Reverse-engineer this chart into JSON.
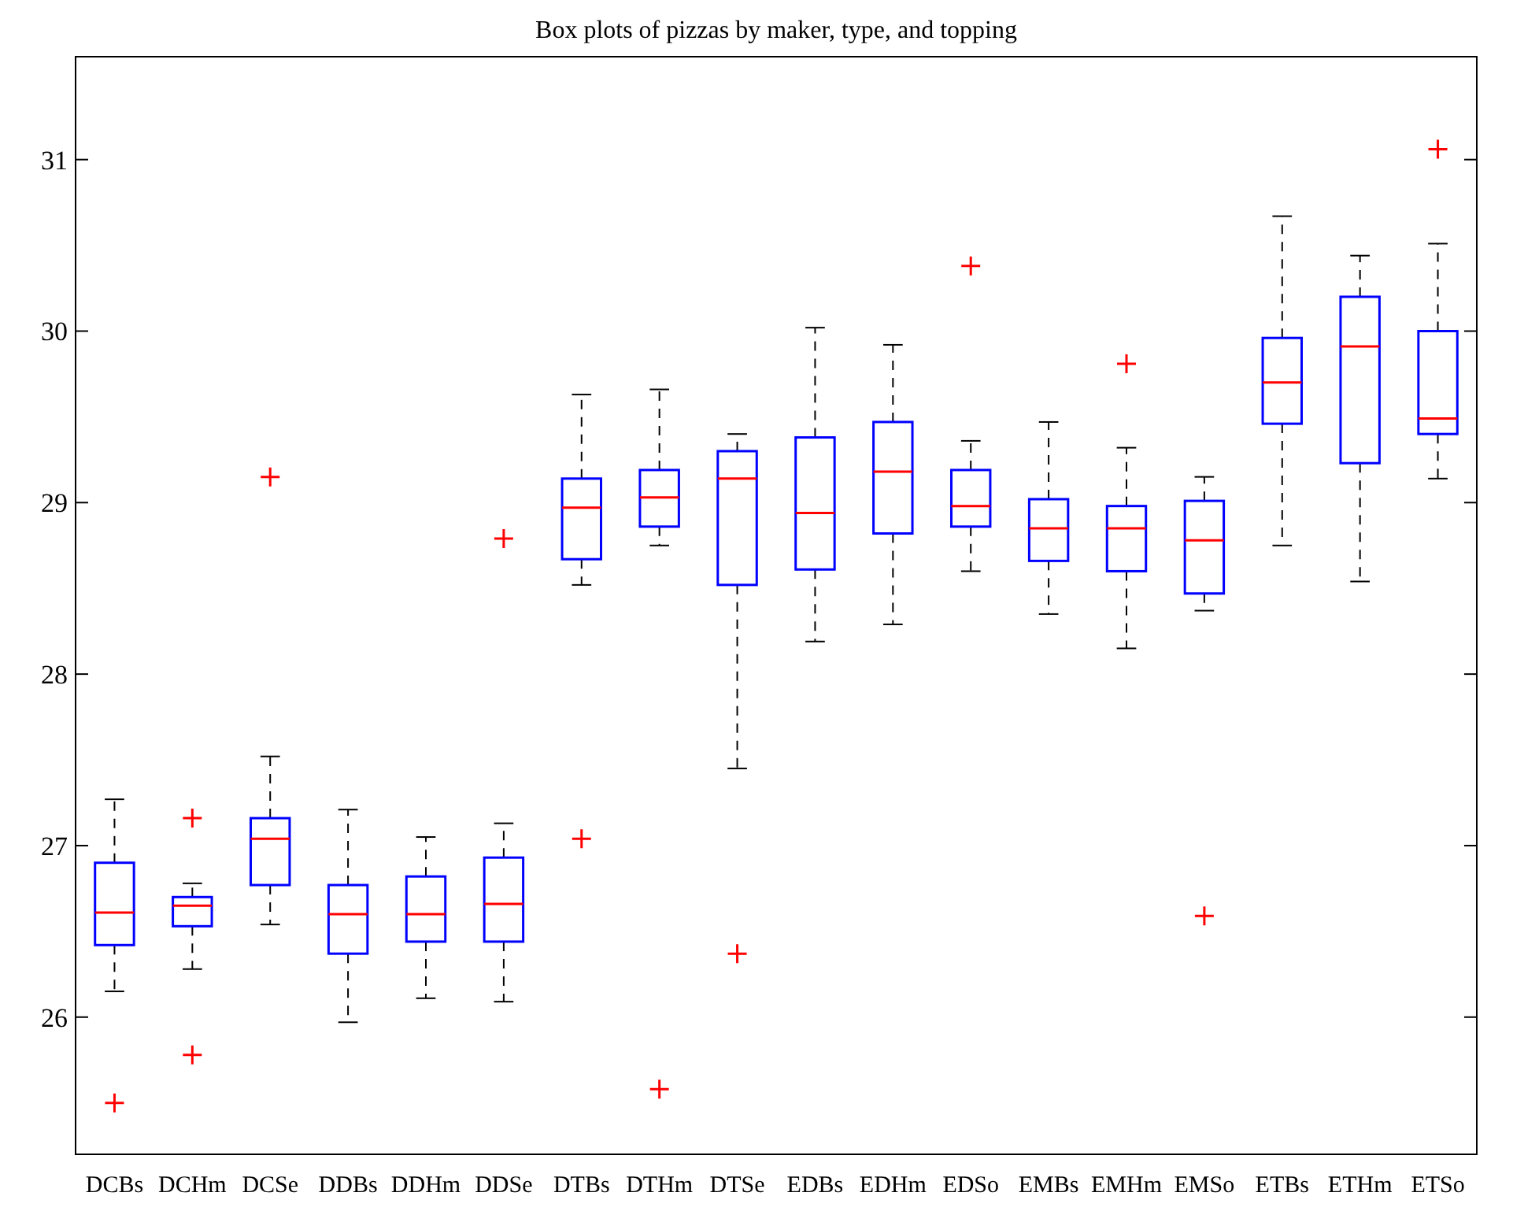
{
  "chart_data": {
    "type": "box",
    "title": "Box plots of pizzas by maker, type, and topping",
    "categories": [
      "DCBs",
      "DCHm",
      "DCSe",
      "DDBs",
      "DDHm",
      "DDSe",
      "DTBs",
      "DTHm",
      "DTSe",
      "EDBs",
      "EDHm",
      "EDSo",
      "EMBs",
      "EMHm",
      "EMSo",
      "ETBs",
      "ETHm",
      "ETSo"
    ],
    "ylim": [
      25.2,
      31.6
    ],
    "yticks": [
      26,
      27,
      28,
      29,
      30,
      31
    ],
    "series": [
      {
        "color": "#0000ff",
        "boxes": [
          {
            "low": 26.15,
            "q1": 26.42,
            "median": 26.61,
            "q3": 26.9,
            "high": 27.27,
            "outliers": [
              25.5
            ]
          },
          {
            "low": 26.28,
            "q1": 26.53,
            "median": 26.65,
            "q3": 26.7,
            "high": 26.78,
            "outliers": [
              27.16,
              25.78
            ]
          },
          {
            "low": 26.54,
            "q1": 26.77,
            "median": 27.04,
            "q3": 27.16,
            "high": 27.52,
            "outliers": [
              29.15
            ]
          },
          {
            "low": 25.97,
            "q1": 26.37,
            "median": 26.6,
            "q3": 26.77,
            "high": 27.21
          },
          {
            "low": 26.11,
            "q1": 26.44,
            "median": 26.6,
            "q3": 26.82,
            "high": 27.05
          },
          {
            "low": 26.09,
            "q1": 26.44,
            "median": 26.66,
            "q3": 26.93,
            "high": 27.13,
            "outliers": [
              28.79
            ]
          },
          {
            "low": 28.52,
            "q1": 28.67,
            "median": 28.97,
            "q3": 29.14,
            "high": 29.63,
            "outliers": [
              27.04
            ]
          },
          {
            "low": 28.75,
            "q1": 28.86,
            "median": 29.03,
            "q3": 29.19,
            "high": 29.66,
            "outliers": [
              25.58
            ]
          },
          {
            "low": 27.45,
            "q1": 28.52,
            "median": 29.14,
            "q3": 29.3,
            "high": 29.4,
            "outliers": [
              26.37
            ]
          },
          {
            "low": 28.19,
            "q1": 28.61,
            "median": 28.94,
            "q3": 29.38,
            "high": 30.02
          },
          {
            "low": 28.29,
            "q1": 28.82,
            "median": 29.18,
            "q3": 29.47,
            "high": 29.92
          },
          {
            "low": 28.6,
            "q1": 28.86,
            "median": 28.98,
            "q3": 29.19,
            "high": 29.36,
            "outliers": [
              30.38
            ]
          },
          {
            "low": 28.35,
            "q1": 28.66,
            "median": 28.85,
            "q3": 29.02,
            "high": 29.47
          },
          {
            "low": 28.15,
            "q1": 28.6,
            "median": 28.85,
            "q3": 28.98,
            "high": 29.32,
            "outliers": [
              29.81
            ]
          },
          {
            "low": 28.37,
            "q1": 28.47,
            "median": 28.78,
            "q3": 29.01,
            "high": 29.15,
            "outliers": [
              26.59
            ]
          },
          {
            "low": 28.75,
            "q1": 29.46,
            "median": 29.7,
            "q3": 29.96,
            "high": 30.67
          },
          {
            "low": 28.54,
            "q1": 29.23,
            "median": 29.91,
            "q3": 30.2,
            "high": 30.44
          },
          {
            "low": 29.14,
            "q1": 29.4,
            "median": 29.49,
            "q3": 30.0,
            "high": 30.51,
            "outliers": [
              31.06
            ]
          }
        ]
      }
    ]
  }
}
